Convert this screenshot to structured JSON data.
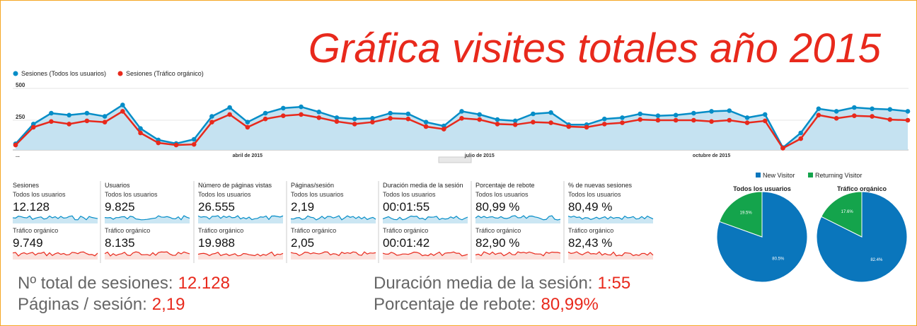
{
  "title": "Gráfica visites totales año 2015",
  "chart_data": [
    {
      "type": "line",
      "categories": [
        "...",
        null,
        null,
        null,
        null,
        null,
        null,
        null,
        null,
        null,
        null,
        null,
        null,
        "abril de 2015",
        null,
        null,
        null,
        null,
        null,
        null,
        null,
        null,
        null,
        null,
        null,
        null,
        "julio de 2015",
        null,
        null,
        null,
        null,
        null,
        null,
        null,
        null,
        null,
        null,
        null,
        null,
        "octubre de 2015",
        null,
        null,
        null,
        null,
        null,
        null,
        null,
        null,
        null,
        null,
        null
      ],
      "series": [
        {
          "name": "Sesiones (Todos los usuarios)",
          "color": "#058dc7",
          "values": [
            65,
            220,
            305,
            290,
            305,
            280,
            370,
            185,
            95,
            67,
            100,
            280,
            350,
            235,
            305,
            345,
            355,
            315,
            270,
            260,
            265,
            305,
            300,
            235,
            205,
            320,
            295,
            255,
            245,
            300,
            310,
            215,
            215,
            260,
            270,
            300,
            285,
            290,
            305,
            320,
            325,
            270,
            295,
            35,
            150,
            340,
            320,
            350,
            340,
            335,
            320
          ]
        },
        {
          "name": "Sesiones (Tráfico orgánico)",
          "color": "#e8291c",
          "values": [
            55,
            195,
            240,
            220,
            245,
            235,
            320,
            150,
            72,
            55,
            60,
            235,
            295,
            195,
            260,
            285,
            295,
            270,
            240,
            220,
            235,
            265,
            260,
            200,
            180,
            265,
            255,
            220,
            215,
            235,
            230,
            200,
            195,
            220,
            230,
            255,
            250,
            250,
            250,
            240,
            250,
            230,
            245,
            30,
            105,
            290,
            265,
            285,
            280,
            255,
            250
          ]
        }
      ],
      "ylim": [
        0,
        500
      ],
      "yticks": [
        250,
        500
      ]
    },
    {
      "type": "pie",
      "title": "Todos los usuarios",
      "categories": [
        "New Visitor",
        "Returning Visitor"
      ],
      "colors": [
        "#0a76bc",
        "#14a44c"
      ],
      "values": [
        80.5,
        19.5
      ],
      "value_labels": [
        "80.5%",
        "19.5%"
      ]
    },
    {
      "type": "pie",
      "title": "Tráfico orgánico",
      "values": [
        82.4,
        17.6
      ],
      "value_labels": [
        "82.4%",
        "17.6%"
      ]
    }
  ],
  "metrics": [
    {
      "label": "Sesiones",
      "rows": [
        {
          "segment": "Todos los usuarios",
          "value": "12.128"
        },
        {
          "segment": "Tráfico orgánico",
          "value": "9.749"
        }
      ]
    },
    {
      "label": "Usuarios",
      "rows": [
        {
          "segment": "Todos los usuarios",
          "value": "9.825"
        },
        {
          "segment": "Tráfico orgánico",
          "value": "8.135"
        }
      ]
    },
    {
      "label": "Número de páginas vistas",
      "rows": [
        {
          "segment": "Todos los usuarios",
          "value": "26.555"
        },
        {
          "segment": "Tráfico orgánico",
          "value": "19.988"
        }
      ]
    },
    {
      "label": "Páginas/sesión",
      "rows": [
        {
          "segment": "Todos los usuarios",
          "value": "2,19"
        },
        {
          "segment": "Tráfico orgánico",
          "value": "2,05"
        }
      ]
    },
    {
      "label": "Duración media de la sesión",
      "rows": [
        {
          "segment": "Todos los usuarios",
          "value": "00:01:55"
        },
        {
          "segment": "Tráfico orgánico",
          "value": "00:01:42"
        }
      ]
    },
    {
      "label": "Porcentaje de rebote",
      "rows": [
        {
          "segment": "Todos los usuarios",
          "value": "80,99 %"
        },
        {
          "segment": "Tráfico orgánico",
          "value": "82,90 %"
        }
      ]
    },
    {
      "label": "% de nuevas sesiones",
      "rows": [
        {
          "segment": "Todos los usuarios",
          "value": "80,49 %"
        },
        {
          "segment": "Tráfico orgánico",
          "value": "82,43 %"
        }
      ]
    }
  ],
  "summary": [
    {
      "label": "Nº total de sesiones:",
      "value": "12.128"
    },
    {
      "label": "Páginas / sesión:",
      "value": "2,19"
    },
    {
      "label": "Duración media de la sesión:",
      "value": "1:55"
    },
    {
      "label": "Porcentaje de rebote:",
      "value": "80,99%"
    }
  ]
}
